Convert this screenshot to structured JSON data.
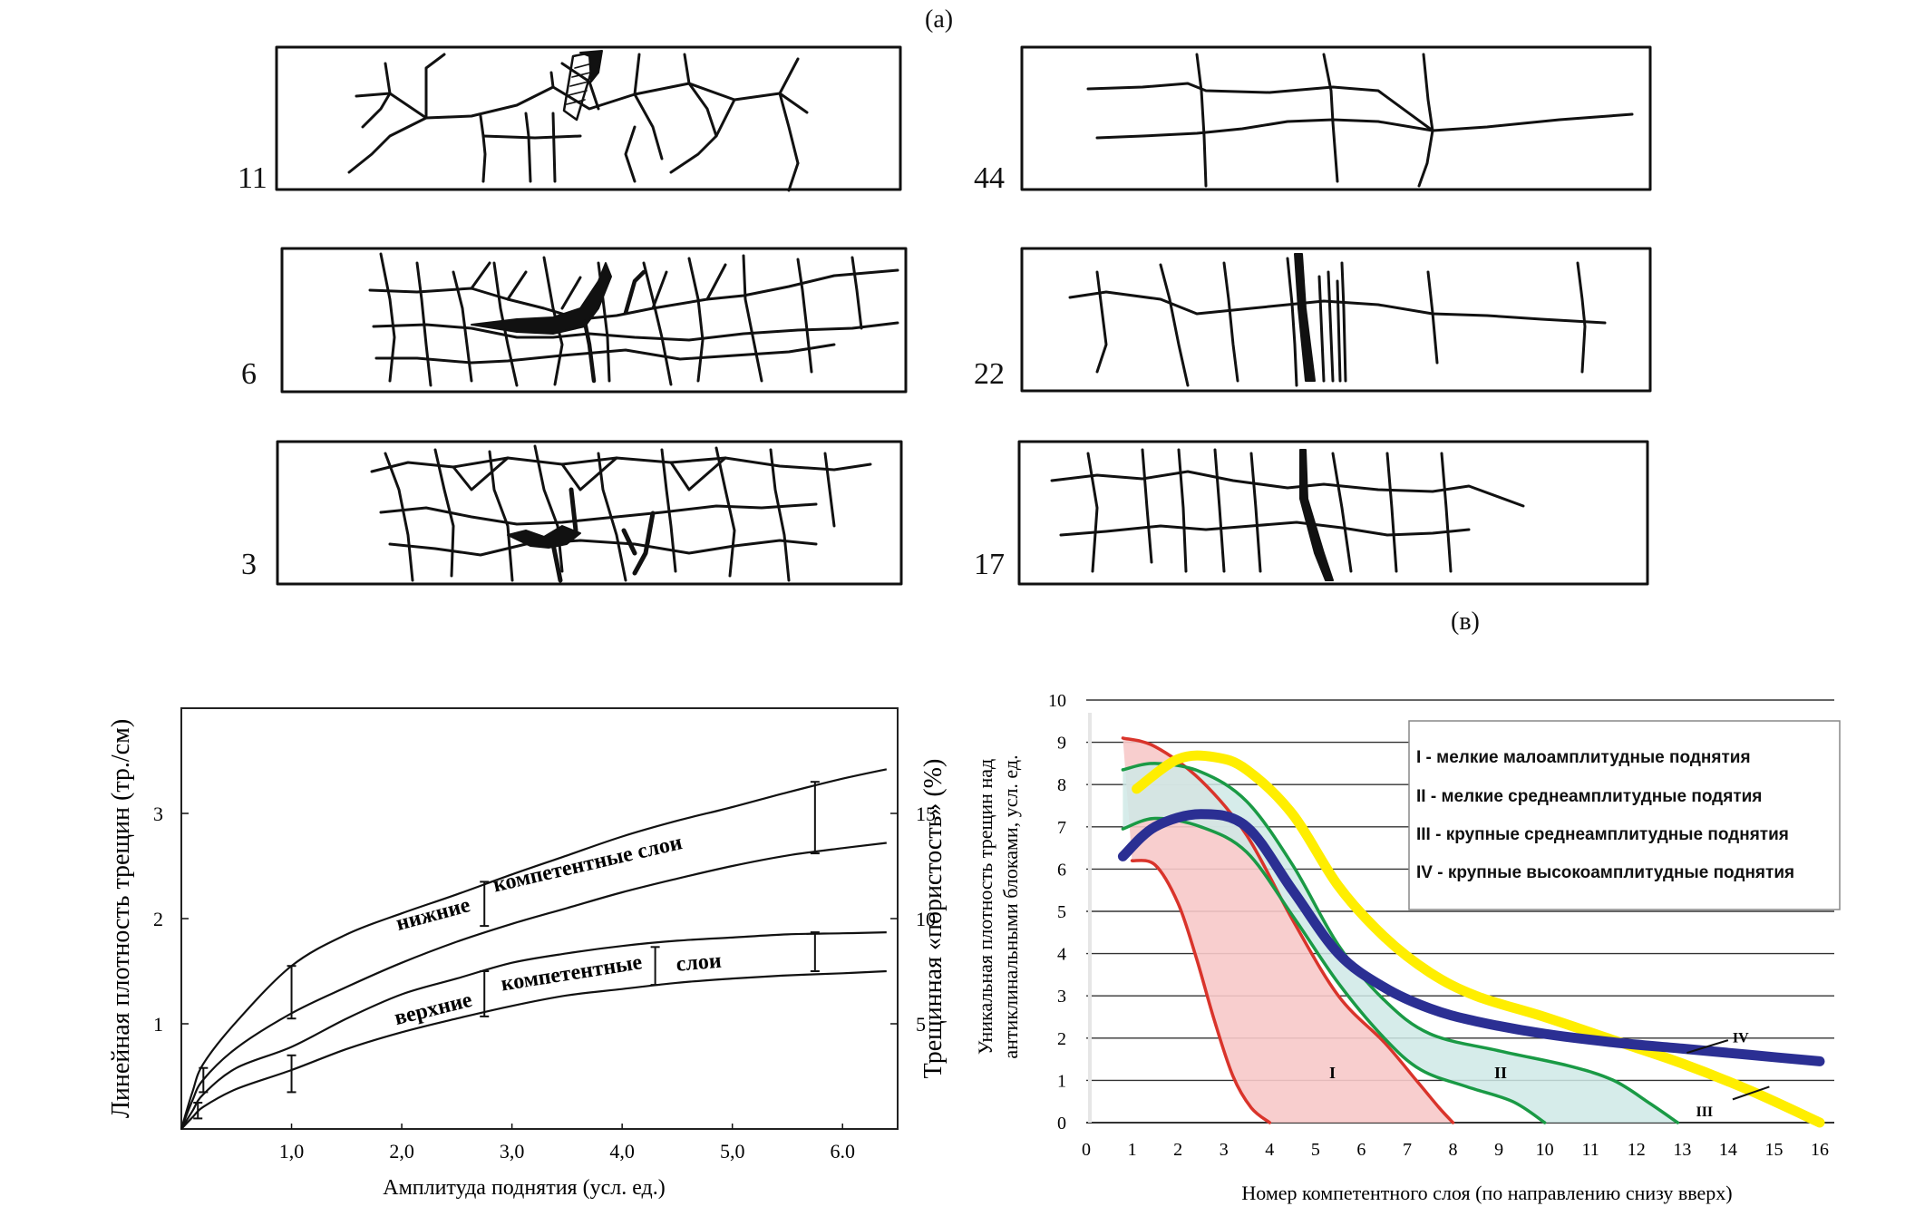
{
  "panel_a": {
    "caption": "(а)",
    "samples_left": [
      "11",
      "6",
      "3"
    ],
    "samples_right": [
      "44",
      "22",
      "17"
    ]
  },
  "panel_v": {
    "caption": "(в)"
  },
  "chart_data": [
    {
      "type": "line",
      "xlabel": "Амплитуда поднятия (усл. ед.)",
      "ylabel": "Линейная плотность трещин (тр./см)",
      "y2label": "Трещинная «пористость» (%)",
      "xlim": [
        0,
        6.5
      ],
      "ylim": [
        0,
        4.0
      ],
      "y2lim": [
        0,
        20
      ],
      "x_ticks": [
        "1,0",
        "2,0",
        "3,0",
        "4,0",
        "5,0",
        "6.0"
      ],
      "x_tick_values": [
        1,
        2,
        3,
        4,
        5,
        6
      ],
      "y_ticks": [
        "1",
        "2",
        "3"
      ],
      "y_tick_values": [
        1,
        2,
        3
      ],
      "y2_ticks": [
        "5",
        "10",
        "15"
      ],
      "y2_tick_values": [
        5,
        10,
        15
      ],
      "band_labels": [
        {
          "word1": "нижние",
          "word2": "компетентные слои"
        },
        {
          "word1": "верхние",
          "word2": "компетентные",
          "word3": "слои"
        }
      ],
      "series": [
        {
          "values": [
            [
              0,
              0
            ],
            [
              0.1,
              0.35
            ],
            [
              0.2,
              0.62
            ],
            [
              0.5,
              1.02
            ],
            [
              1,
              1.55
            ],
            [
              1.5,
              1.85
            ],
            [
              2,
              2.05
            ],
            [
              2.5,
              2.23
            ],
            [
              3,
              2.42
            ],
            [
              3.5,
              2.6
            ],
            [
              4,
              2.78
            ],
            [
              4.5,
              2.93
            ],
            [
              5,
              3.06
            ],
            [
              5.5,
              3.2
            ],
            [
              6,
              3.33
            ],
            [
              6.4,
              3.42
            ]
          ]
        },
        {
          "values": [
            [
              0,
              0
            ],
            [
              0.1,
              0.27
            ],
            [
              0.2,
              0.47
            ],
            [
              0.5,
              0.77
            ],
            [
              1,
              1.1
            ],
            [
              1.5,
              1.35
            ],
            [
              2,
              1.58
            ],
            [
              2.5,
              1.78
            ],
            [
              3,
              1.95
            ],
            [
              3.5,
              2.1
            ],
            [
              4,
              2.25
            ],
            [
              4.5,
              2.38
            ],
            [
              5,
              2.5
            ],
            [
              5.5,
              2.6
            ],
            [
              6,
              2.67
            ],
            [
              6.4,
              2.72
            ]
          ]
        },
        {
          "values": [
            [
              0,
              0
            ],
            [
              0.1,
              0.17
            ],
            [
              0.2,
              0.33
            ],
            [
              0.5,
              0.58
            ],
            [
              1,
              0.78
            ],
            [
              1.5,
              1.05
            ],
            [
              2,
              1.28
            ],
            [
              2.5,
              1.43
            ],
            [
              3,
              1.58
            ],
            [
              3.5,
              1.67
            ],
            [
              4,
              1.74
            ],
            [
              4.5,
              1.79
            ],
            [
              5,
              1.82
            ],
            [
              5.5,
              1.85
            ],
            [
              6,
              1.86
            ],
            [
              6.4,
              1.87
            ]
          ]
        },
        {
          "values": [
            [
              0,
              0
            ],
            [
              0.1,
              0.11
            ],
            [
              0.2,
              0.21
            ],
            [
              0.5,
              0.38
            ],
            [
              1,
              0.56
            ],
            [
              1.5,
              0.76
            ],
            [
              2,
              0.92
            ],
            [
              2.5,
              1.05
            ],
            [
              3,
              1.17
            ],
            [
              3.5,
              1.27
            ],
            [
              4,
              1.33
            ],
            [
              4.5,
              1.39
            ],
            [
              5,
              1.43
            ],
            [
              5.5,
              1.46
            ],
            [
              6,
              1.48
            ],
            [
              6.4,
              1.5
            ]
          ]
        }
      ],
      "error_bars": [
        {
          "x": 0.2,
          "ylo": 0.35,
          "yhi": 0.58
        },
        {
          "x": 0.15,
          "ylo": 0.1,
          "yhi": 0.25
        },
        {
          "x": 1.0,
          "ylo": 1.05,
          "yhi": 1.55
        },
        {
          "x": 1.0,
          "ylo": 0.35,
          "yhi": 0.7
        },
        {
          "x": 2.75,
          "ylo": 1.93,
          "yhi": 2.35
        },
        {
          "x": 2.75,
          "ylo": 1.07,
          "yhi": 1.5
        },
        {
          "x": 4.3,
          "ylo": 1.37,
          "yhi": 1.73
        },
        {
          "x": 5.75,
          "ylo": 2.62,
          "yhi": 3.3
        },
        {
          "x": 5.75,
          "ylo": 1.5,
          "yhi": 1.87
        }
      ]
    },
    {
      "type": "line",
      "xlabel": "Номер компетентного слоя (по направлению снизу вверх)",
      "ylabel_line1": "Уникальная плотность трещин над",
      "ylabel_line2": "антиклинальными блоками, усл. ед.",
      "xlim": [
        0,
        16
      ],
      "ylim": [
        0,
        10
      ],
      "x_ticks": [
        "0",
        "1",
        "2",
        "3",
        "4",
        "5",
        "6",
        "7",
        "8",
        "9",
        "10",
        "11",
        "12",
        "13",
        "14",
        "15",
        "16"
      ],
      "y_ticks": [
        "0",
        "1",
        "2",
        "3",
        "4",
        "5",
        "6",
        "7",
        "8",
        "9",
        "10"
      ],
      "grid": true,
      "legend_position": "top-right",
      "legend": [
        "I - мелкие малоамплитудные поднятия",
        "II - мелкие среднеамплитудные подятия",
        "III - крупные среднеамплитудные поднятия",
        "IV - крупные высокоамплитудные поднятия"
      ],
      "region_labels": [
        "I",
        "II"
      ],
      "curve_labels": [
        "IV",
        "III"
      ],
      "colors": {
        "I": "#d9342b",
        "II": "#1a9a45",
        "III": "#ffee00",
        "IV": "#2b2f93",
        "fill_I": "#f7c9c9",
        "fill_II": "#cfe9e6"
      },
      "series": [
        {
          "name": "I",
          "color": "#d9342b",
          "values": [
            [
              0.8,
              9.1
            ],
            [
              1.5,
              8.9
            ],
            [
              2.5,
              8.1
            ],
            [
              3.5,
              6.8
            ],
            [
              4.5,
              4.8
            ],
            [
              5.5,
              3.0
            ],
            [
              6.5,
              1.9
            ],
            [
              7.2,
              1.0
            ],
            [
              7.7,
              0.35
            ],
            [
              8.0,
              0
            ]
          ]
        },
        {
          "name": "I",
          "color": "#d9342b",
          "values": [
            [
              1.0,
              6.2
            ],
            [
              1.5,
              6.1
            ],
            [
              2.0,
              5.2
            ],
            [
              2.4,
              3.9
            ],
            [
              2.8,
              2.4
            ],
            [
              3.2,
              1.1
            ],
            [
              3.6,
              0.35
            ],
            [
              4.0,
              0
            ]
          ]
        },
        {
          "name": "II",
          "color": "#1a9a45",
          "values": [
            [
              0.8,
              8.35
            ],
            [
              1.5,
              8.5
            ],
            [
              2.5,
              8.3
            ],
            [
              3.5,
              7.6
            ],
            [
              4.5,
              6.1
            ],
            [
              5.5,
              4.2
            ],
            [
              6.5,
              2.9
            ],
            [
              7.5,
              2.1
            ],
            [
              9,
              1.7
            ],
            [
              10.5,
              1.35
            ],
            [
              11.5,
              1.0
            ],
            [
              12.3,
              0.45
            ],
            [
              12.9,
              0
            ]
          ]
        },
        {
          "name": "II",
          "color": "#1a9a45",
          "values": [
            [
              0.8,
              6.95
            ],
            [
              1.5,
              7.2
            ],
            [
              2.5,
              7.0
            ],
            [
              3.5,
              6.4
            ],
            [
              4.5,
              4.9
            ],
            [
              5.5,
              3.3
            ],
            [
              6.5,
              2.0
            ],
            [
              7.3,
              1.25
            ],
            [
              8.3,
              0.85
            ],
            [
              9.3,
              0.5
            ],
            [
              10.0,
              0
            ]
          ]
        },
        {
          "name": "III",
          "color": "#ffee00",
          "values": [
            [
              1.1,
              7.9
            ],
            [
              2,
              8.6
            ],
            [
              2.8,
              8.65
            ],
            [
              3.5,
              8.35
            ],
            [
              4.5,
              7.3
            ],
            [
              5.5,
              5.6
            ],
            [
              6.5,
              4.4
            ],
            [
              7.5,
              3.55
            ],
            [
              8.5,
              3.0
            ],
            [
              10,
              2.5
            ],
            [
              11.5,
              1.95
            ],
            [
              13,
              1.4
            ],
            [
              14.5,
              0.75
            ],
            [
              16,
              0
            ]
          ]
        },
        {
          "name": "IV",
          "color": "#2b2f93",
          "values": [
            [
              0.8,
              6.3
            ],
            [
              1.5,
              7.0
            ],
            [
              2.5,
              7.3
            ],
            [
              3.5,
              7.0
            ],
            [
              4.5,
              5.5
            ],
            [
              5.5,
              4.0
            ],
            [
              6.5,
              3.2
            ],
            [
              7.5,
              2.7
            ],
            [
              8.5,
              2.4
            ],
            [
              10,
              2.1
            ],
            [
              11.5,
              1.9
            ],
            [
              13,
              1.75
            ],
            [
              14.5,
              1.6
            ],
            [
              16,
              1.45
            ]
          ]
        }
      ]
    }
  ]
}
